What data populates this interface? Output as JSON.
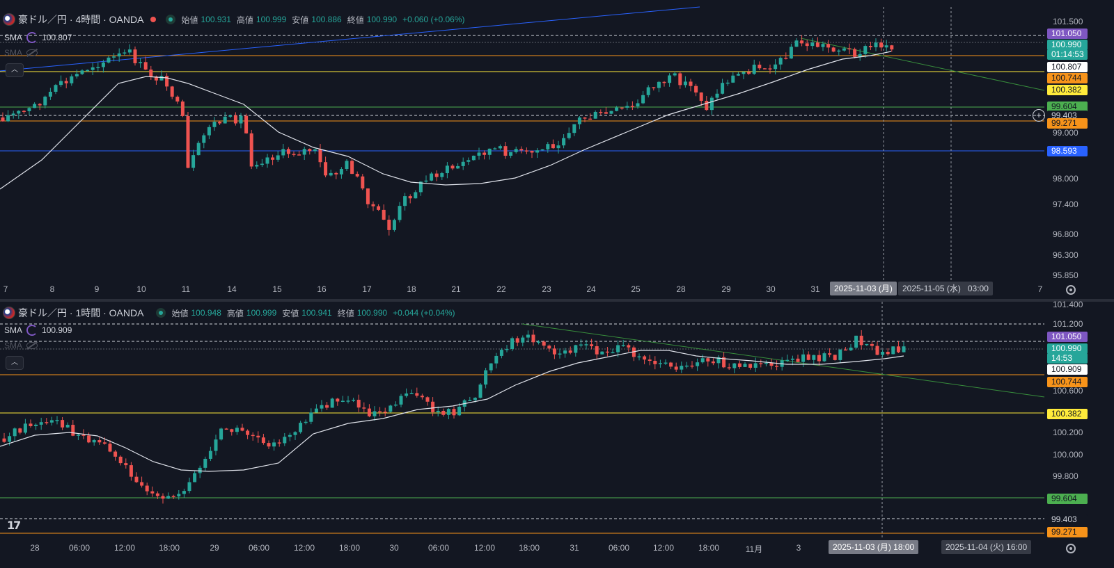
{
  "colors": {
    "up": "#26a69a",
    "down": "#ef5350",
    "bg": "#131722",
    "sma": "#e0e3eb",
    "axis": "#b2b5be",
    "orange": "#f7931a",
    "yellow": "#ffeb3b",
    "green_line": "#4caf50",
    "blue_line": "#2962ff",
    "purple": "#7e57c2"
  },
  "top": {
    "symbol": "豪ドル／円 · 4時間 · OANDA",
    "ohlc": [
      {
        "label": "始値",
        "value": "100.931"
      },
      {
        "label": "高値",
        "value": "100.999"
      },
      {
        "label": "安値",
        "value": "100.886"
      },
      {
        "label": "終値",
        "value": "100.990"
      }
    ],
    "change": "+0.060 (+0.06%)",
    "sma1_name": "SMA",
    "sma1_value": "100.807",
    "sma2_name": "SMA",
    "price_axis": [
      "101.500",
      "99.000",
      "98.000",
      "97.400",
      "96.800",
      "96.300",
      "95.850"
    ],
    "tags": [
      {
        "text": "101.050",
        "bg": "#7e57c2",
        "fg": "#ffffff"
      },
      {
        "text": "100.990",
        "bg": "#26a69a",
        "fg": "#ffffff"
      },
      {
        "text": "01:14:53",
        "bg": "#26a69a",
        "fg": "#ffffff"
      },
      {
        "text": "100.807",
        "bg": "#ffffff",
        "fg": "#131722"
      },
      {
        "text": "100.744",
        "bg": "#f7931a",
        "fg": "#131722"
      },
      {
        "text": "100.382",
        "bg": "#ffeb3b",
        "fg": "#131722"
      },
      {
        "text": "99.604",
        "bg": "#4caf50",
        "fg": "#131722"
      },
      {
        "text": "99.403",
        "bg": "#131722",
        "fg": "#d1d4dc"
      },
      {
        "text": "99.271",
        "bg": "#f7931a",
        "fg": "#131722"
      },
      {
        "text": "98.593",
        "bg": "#2962ff",
        "fg": "#ffffff"
      }
    ],
    "x_axis": [
      "7",
      "8",
      "9",
      "10",
      "11",
      "14",
      "15",
      "16",
      "17",
      "18",
      "21",
      "22",
      "23",
      "24",
      "25",
      "28",
      "29",
      "30",
      "31",
      "7"
    ],
    "x_bubble_left": "2025-11-03 (月)",
    "x_bubble_right_date": "2025-11-05 (水)",
    "x_bubble_right_time": "03:00"
  },
  "bottom": {
    "symbol": "豪ドル／円 · 1時間 · OANDA",
    "ohlc": [
      {
        "label": "始値",
        "value": "100.948"
      },
      {
        "label": "高値",
        "value": "100.999"
      },
      {
        "label": "安値",
        "value": "100.941"
      },
      {
        "label": "終値",
        "value": "100.990"
      }
    ],
    "change": "+0.044 (+0.04%)",
    "sma1_name": "SMA",
    "sma1_value": "100.909",
    "sma2_name": "SMA",
    "price_axis": [
      "101.400",
      "101.200",
      "100.600",
      "100.200",
      "100.000",
      "99.800"
    ],
    "tags": [
      {
        "text": "101.050",
        "bg": "#7e57c2",
        "fg": "#ffffff"
      },
      {
        "text": "100.990",
        "bg": "#26a69a",
        "fg": "#ffffff"
      },
      {
        "text": "14:53",
        "bg": "#26a69a",
        "fg": "#ffffff"
      },
      {
        "text": "100.909",
        "bg": "#ffffff",
        "fg": "#131722"
      },
      {
        "text": "100.744",
        "bg": "#f7931a",
        "fg": "#131722"
      },
      {
        "text": "100.382",
        "bg": "#ffeb3b",
        "fg": "#131722"
      },
      {
        "text": "99.604",
        "bg": "#4caf50",
        "fg": "#131722"
      },
      {
        "text": "99.403",
        "bg": "#131722",
        "fg": "#d1d4dc"
      },
      {
        "text": "99.271",
        "bg": "#f7931a",
        "fg": "#131722"
      }
    ],
    "x_axis": [
      "28",
      "06:00",
      "12:00",
      "18:00",
      "29",
      "06:00",
      "12:00",
      "18:00",
      "30",
      "06:00",
      "12:00",
      "18:00",
      "31",
      "06:00",
      "12:00",
      "18:00",
      "11月",
      "3"
    ],
    "x_bubble_left": "2025-11-03 (月)   18:00",
    "x_bubble_right": "2025-11-04 (火)   16:00"
  }
}
